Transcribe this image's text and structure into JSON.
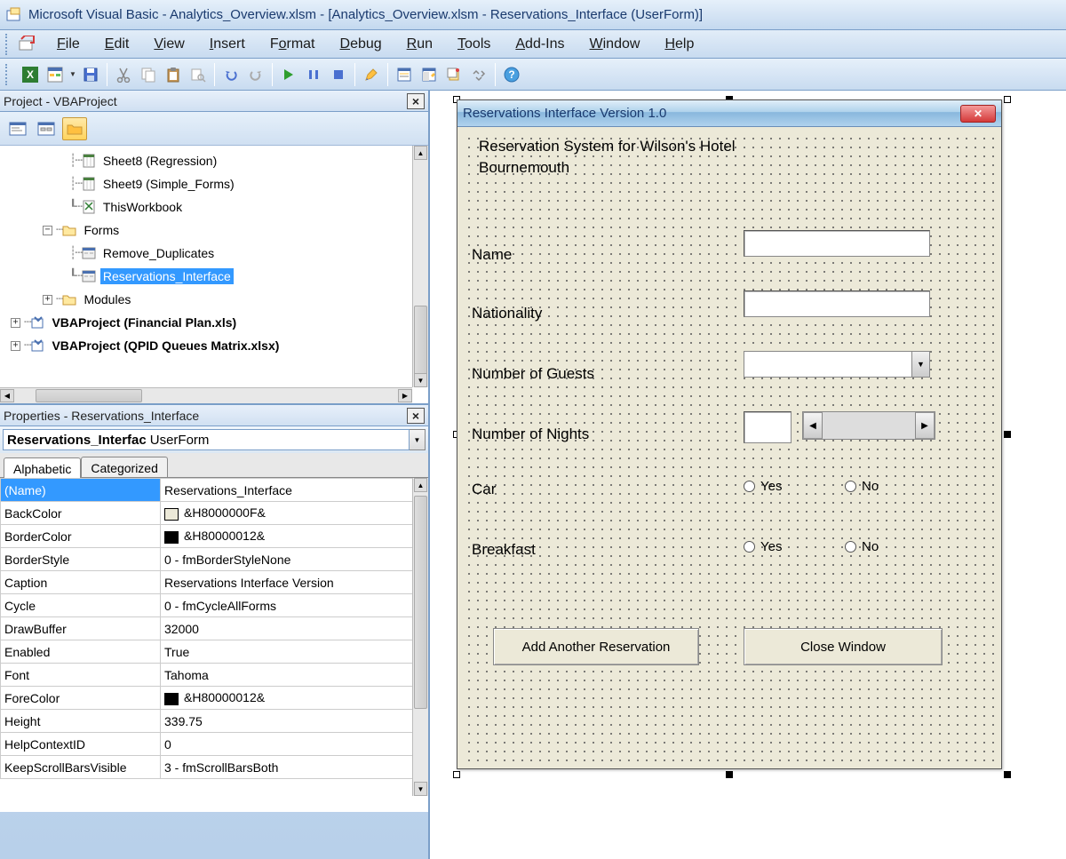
{
  "titlebar": {
    "text": "Microsoft Visual Basic - Analytics_Overview.xlsm - [Analytics_Overview.xlsm - Reservations_Interface (UserForm)]"
  },
  "menubar": {
    "items": [
      "File",
      "Edit",
      "View",
      "Insert",
      "Format",
      "Debug",
      "Run",
      "Tools",
      "Add-Ins",
      "Window",
      "Help"
    ]
  },
  "project_panel": {
    "title": "Project - VBAProject",
    "tree": {
      "sheet8": "Sheet8 (Regression)",
      "sheet9": "Sheet9 (Simple_Forms)",
      "thiswb": "ThisWorkbook",
      "forms": "Forms",
      "form1": "Remove_Duplicates",
      "form2": "Reservations_Interface",
      "modules": "Modules",
      "proj2": "VBAProject (Financial Plan.xls)",
      "proj3": "VBAProject (QPID Queues Matrix.xlsx)"
    }
  },
  "properties_panel": {
    "title": "Properties - Reservations_Interface",
    "object_name": "Reservations_Interfac",
    "object_type": "UserForm",
    "tabs": {
      "alphabetic": "Alphabetic",
      "categorized": "Categorized"
    },
    "rows": [
      {
        "key": "(Name)",
        "val": "Reservations_Interface",
        "selected": true
      },
      {
        "key": "BackColor",
        "val": "&H8000000F&",
        "swatch": "#ece9d8"
      },
      {
        "key": "BorderColor",
        "val": "&H80000012&",
        "swatch": "#000000"
      },
      {
        "key": "BorderStyle",
        "val": "0 - fmBorderStyleNone"
      },
      {
        "key": "Caption",
        "val": "Reservations Interface Version"
      },
      {
        "key": "Cycle",
        "val": "0 - fmCycleAllForms"
      },
      {
        "key": "DrawBuffer",
        "val": "32000"
      },
      {
        "key": "Enabled",
        "val": "True"
      },
      {
        "key": "Font",
        "val": "Tahoma"
      },
      {
        "key": "ForeColor",
        "val": "&H80000012&",
        "swatch": "#000000"
      },
      {
        "key": "Height",
        "val": "339.75"
      },
      {
        "key": "HelpContextID",
        "val": "0"
      },
      {
        "key": "KeepScrollBarsVisible",
        "val": "3 - fmScrollBarsBoth"
      }
    ]
  },
  "userform": {
    "caption": "Reservations Interface Version 1.0",
    "heading": "Reservation System for Wilson's Hotel Bournemouth",
    "labels": {
      "name": "Name",
      "nationality": "Nationality",
      "guests": "Number of Guests",
      "nights": "Number of Nights",
      "car": "Car",
      "breakfast": "Breakfast"
    },
    "options": {
      "yes": "Yes",
      "no": "No"
    },
    "buttons": {
      "add": "Add Another Reservation",
      "close": "Close Window"
    }
  }
}
